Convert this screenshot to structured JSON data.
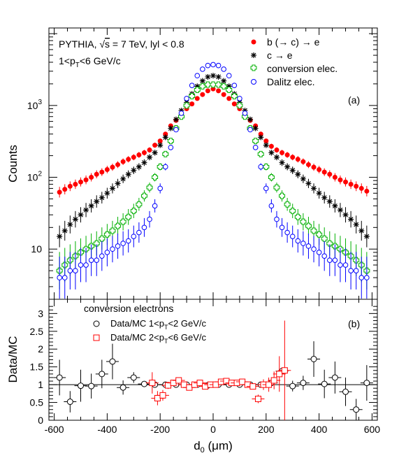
{
  "chart_data": [
    {
      "type": "scatter",
      "panel_label": "(a)",
      "ylabel": "Counts",
      "yscale": "log",
      "xlim": [
        -620,
        620
      ],
      "ylim": [
        2,
        12000
      ],
      "x_ticks": [
        -600,
        -400,
        -200,
        0,
        200,
        400,
        600
      ],
      "y_tick_labels": [
        {
          "value": 10,
          "base": "10",
          "exp": ""
        },
        {
          "value": 100,
          "base": "10",
          "exp": "2"
        },
        {
          "value": 1000,
          "base": "10",
          "exp": "3"
        }
      ],
      "annotation_line1": "PYTHIA, √s = 7 TeV, lyl < 0.8",
      "annotation_line2": "1<p_T<6 GeV/c",
      "annot1": {
        "pre": "PYTHIA, ",
        "root": "√",
        "s": "s",
        "post": " = 7 TeV, lyl < 0.8"
      },
      "annot2": {
        "pre": "1<p",
        "sub": "T",
        "post": "<6 GeV/c"
      },
      "legend_position": "top-right",
      "series": [
        {
          "name": "b (→ c) → e",
          "marker": "filled-circle",
          "color": "#ff0000",
          "x": [
            -580,
            -560,
            -540,
            -520,
            -500,
            -480,
            -460,
            -440,
            -420,
            -400,
            -380,
            -360,
            -340,
            -320,
            -300,
            -280,
            -260,
            -240,
            -220,
            -200,
            -180,
            -160,
            -140,
            -120,
            -100,
            -80,
            -60,
            -40,
            -20,
            0,
            20,
            40,
            60,
            80,
            100,
            120,
            140,
            160,
            180,
            200,
            220,
            240,
            260,
            280,
            300,
            320,
            340,
            360,
            380,
            400,
            420,
            440,
            460,
            480,
            500,
            520,
            540,
            560,
            580
          ],
          "y": [
            62,
            68,
            75,
            80,
            86,
            92,
            100,
            110,
            118,
            128,
            138,
            150,
            165,
            178,
            190,
            205,
            220,
            240,
            280,
            320,
            400,
            520,
            620,
            760,
            900,
            1050,
            1250,
            1420,
            1600,
            1700,
            1600,
            1420,
            1250,
            1050,
            900,
            760,
            620,
            520,
            400,
            320,
            270,
            240,
            220,
            205,
            190,
            178,
            165,
            150,
            138,
            128,
            118,
            110,
            100,
            92,
            86,
            80,
            75,
            70,
            64
          ]
        },
        {
          "name": "c → e",
          "marker": "asterisk",
          "color": "#000000",
          "x": [
            -580,
            -560,
            -540,
            -520,
            -500,
            -480,
            -460,
            -440,
            -420,
            -400,
            -380,
            -360,
            -340,
            -320,
            -300,
            -280,
            -260,
            -240,
            -220,
            -200,
            -180,
            -160,
            -140,
            -120,
            -100,
            -80,
            -60,
            -40,
            -20,
            0,
            20,
            40,
            60,
            80,
            100,
            120,
            140,
            160,
            180,
            200,
            220,
            240,
            260,
            280,
            300,
            320,
            340,
            360,
            380,
            400,
            420,
            440,
            460,
            480,
            500,
            520,
            540,
            560,
            580
          ],
          "y": [
            15,
            18,
            22,
            26,
            30,
            35,
            40,
            46,
            52,
            60,
            70,
            82,
            95,
            110,
            125,
            140,
            160,
            190,
            220,
            280,
            360,
            480,
            640,
            850,
            1100,
            1450,
            1850,
            2200,
            2500,
            2600,
            2500,
            2200,
            1850,
            1450,
            1100,
            850,
            640,
            480,
            360,
            280,
            220,
            190,
            160,
            140,
            125,
            110,
            95,
            82,
            70,
            60,
            52,
            46,
            40,
            35,
            30,
            26,
            22,
            18,
            15
          ]
        },
        {
          "name": "conversion elec.",
          "marker": "open-cross",
          "color": "#00b000",
          "x": [
            -580,
            -560,
            -540,
            -520,
            -500,
            -480,
            -460,
            -440,
            -420,
            -400,
            -380,
            -360,
            -340,
            -320,
            -300,
            -280,
            -260,
            -240,
            -220,
            -200,
            -180,
            -160,
            -140,
            -120,
            -100,
            -80,
            -60,
            -40,
            -20,
            0,
            20,
            40,
            60,
            80,
            100,
            120,
            140,
            160,
            180,
            200,
            220,
            240,
            260,
            280,
            300,
            320,
            340,
            360,
            380,
            400,
            420,
            440,
            460,
            480,
            500,
            520,
            540,
            560,
            580
          ],
          "y": [
            5,
            6,
            7,
            8,
            9,
            10,
            11,
            12,
            14,
            16,
            18,
            21,
            24,
            28,
            34,
            42,
            55,
            72,
            100,
            140,
            210,
            320,
            480,
            700,
            1000,
            1350,
            1650,
            1850,
            1950,
            1950,
            1950,
            1850,
            1650,
            1350,
            1000,
            700,
            480,
            320,
            210,
            140,
            100,
            72,
            55,
            42,
            34,
            28,
            24,
            21,
            18,
            16,
            14,
            12,
            11,
            10,
            9,
            8,
            7,
            6,
            5
          ]
        },
        {
          "name": "Dalitz elec.",
          "marker": "open-circle",
          "color": "#0000ff",
          "x": [
            -580,
            -560,
            -540,
            -520,
            -500,
            -480,
            -460,
            -440,
            -420,
            -400,
            -380,
            -360,
            -340,
            -320,
            -300,
            -280,
            -260,
            -240,
            -220,
            -200,
            -180,
            -160,
            -140,
            -120,
            -100,
            -80,
            -60,
            -40,
            -20,
            0,
            20,
            40,
            60,
            80,
            100,
            120,
            140,
            160,
            180,
            200,
            220,
            240,
            260,
            280,
            300,
            320,
            340,
            360,
            380,
            400,
            420,
            440,
            460,
            480,
            500,
            520,
            540,
            560,
            580
          ],
          "y": [
            4,
            4,
            5,
            5,
            6,
            6,
            7,
            7,
            8,
            9,
            10,
            11,
            12,
            13,
            15,
            17,
            20,
            26,
            40,
            70,
            140,
            260,
            460,
            780,
            1250,
            1900,
            2600,
            3200,
            3600,
            3700,
            3600,
            3200,
            2600,
            1900,
            1250,
            780,
            460,
            260,
            140,
            70,
            40,
            26,
            20,
            17,
            15,
            13,
            12,
            11,
            10,
            9,
            8,
            7,
            7,
            6,
            6,
            5,
            5,
            4,
            4
          ]
        }
      ]
    },
    {
      "type": "scatter",
      "panel_label": "(b)",
      "ylabel": "Data/MC",
      "xlabel": "d_0 (μm)",
      "xlabel_parts": {
        "d": "d",
        "sub": "0",
        "post": " (μm)"
      },
      "xlim": [
        -620,
        620
      ],
      "ylim": [
        0,
        3.4
      ],
      "x_ticks": [
        -600,
        -400,
        -200,
        0,
        200,
        400,
        600
      ],
      "y_ticks": [
        0,
        0.5,
        1,
        1.5,
        2,
        2.5,
        3
      ],
      "y_tick_labels": [
        "0",
        "0.5",
        "1",
        "1.5",
        "2",
        "2.5",
        "3"
      ],
      "reference_line": 1,
      "legend_title": "conversion electrons",
      "series": [
        {
          "name": "Data/MC 1<p_T<2 GeV/c",
          "label_parts": {
            "pre": "Data/MC 1<p",
            "sub": "T",
            "post": "<2 GeV/c"
          },
          "marker": "open-circle",
          "color": "#000000",
          "x": [
            -580,
            -540,
            -500,
            -460,
            -420,
            -380,
            -340,
            -300,
            -260,
            -220,
            -180,
            -140,
            -100,
            -60,
            -20,
            20,
            60,
            100,
            140,
            180,
            220,
            260,
            300,
            340,
            380,
            420,
            460,
            500,
            540,
            580
          ],
          "y": [
            1.2,
            0.52,
            0.97,
            0.96,
            1.3,
            1.65,
            0.92,
            1.2,
            1.02,
            1.0,
            1.0,
            1.0,
            1.0,
            1.0,
            0.98,
            1.0,
            1.0,
            1.0,
            1.0,
            1.0,
            1.05,
            1.38,
            0.96,
            1.05,
            1.72,
            1.02,
            1.2,
            0.8,
            0.3,
            1.05
          ],
          "yerr": [
            0.5,
            0.3,
            0.45,
            0.35,
            0.4,
            0.5,
            0.2,
            0.15,
            0.08,
            0.05,
            0.04,
            0.03,
            0.03,
            0.03,
            0.03,
            0.03,
            0.03,
            0.03,
            0.03,
            0.04,
            0.05,
            0.1,
            0.15,
            0.2,
            0.5,
            0.4,
            0.45,
            0.4,
            0.3,
            0.5
          ]
        },
        {
          "name": "Data/MC 2<p_T<6 GeV/c",
          "label_parts": {
            "pre": "Data/MC 2<p",
            "sub": "T",
            "post": "<6 GeV/c"
          },
          "marker": "open-square",
          "color": "#ff0000",
          "x": [
            -230,
            -210,
            -190,
            -170,
            -150,
            -130,
            -110,
            -90,
            -70,
            -50,
            -30,
            -10,
            10,
            30,
            50,
            70,
            90,
            110,
            130,
            150,
            170,
            190,
            210,
            230,
            250,
            270
          ],
          "y": [
            1.05,
            0.62,
            0.7,
            0.98,
            1.05,
            1.12,
            1.0,
            0.92,
            1.0,
            1.05,
            0.95,
            1.0,
            1.0,
            1.08,
            1.1,
            1.05,
            1.05,
            1.08,
            1.0,
            0.95,
            0.6,
            1.0,
            1.0,
            1.12,
            1.3,
            1.4
          ],
          "yerr": [
            0.3,
            0.2,
            0.15,
            0.1,
            0.08,
            0.07,
            0.06,
            0.05,
            0.05,
            0.04,
            0.04,
            0.04,
            0.04,
            0.04,
            0.04,
            0.05,
            0.05,
            0.06,
            0.07,
            0.08,
            0.12,
            0.15,
            0.2,
            0.25,
            0.5,
            1.4
          ]
        }
      ]
    }
  ]
}
